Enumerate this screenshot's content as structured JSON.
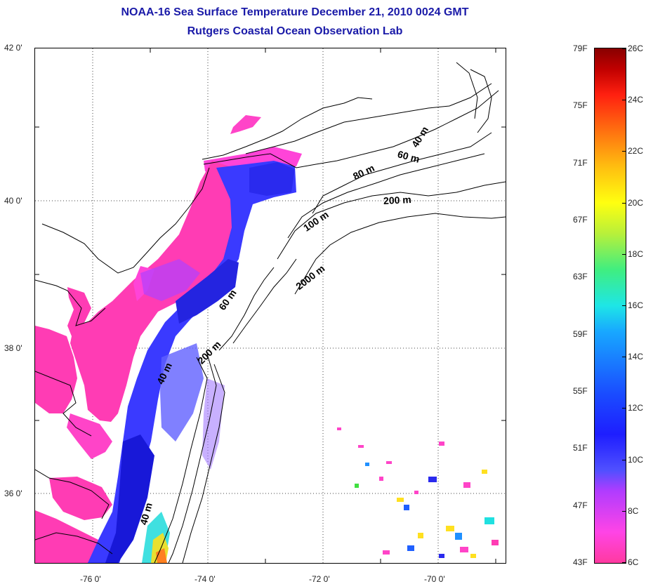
{
  "title": "NOAA-16 Sea Surface Temperature December 21, 2010 0024 GMT",
  "subtitle": "Rutgers Coastal Ocean Observation Lab",
  "map": {
    "lat_labels": [
      "42 0'",
      "40 0'",
      "38 0'",
      "36 0'"
    ],
    "lon_labels": [
      "-76 0'",
      "-74 0'",
      "-72 0'",
      "-70 0'"
    ],
    "contour_labels": [
      "40 m",
      "60 m",
      "80 m",
      "200 m",
      "100 m",
      "2000 m",
      "60 m",
      "200 m",
      "40 m",
      "40 m"
    ]
  },
  "colorbar": {
    "fahrenheit": [
      "79F",
      "75F",
      "71F",
      "67F",
      "63F",
      "59F",
      "55F",
      "51F",
      "47F",
      "43F"
    ],
    "celsius": [
      "26C",
      "24C",
      "22C",
      "20C",
      "18C",
      "16C",
      "14C",
      "12C",
      "10C",
      "8C",
      "6C"
    ]
  }
}
